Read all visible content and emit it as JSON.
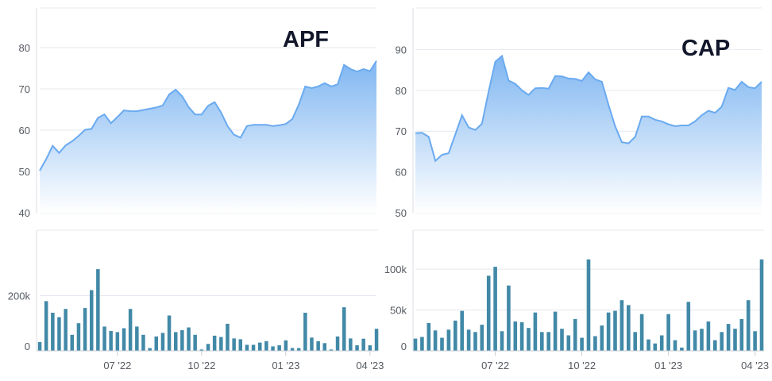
{
  "chart_data": [
    {
      "type": "area",
      "title": "APF",
      "xlabel": "",
      "ylabel": "",
      "x_ticks": [
        "07 '22",
        "10 '22",
        "01 '23",
        "04 '23"
      ],
      "ylim": [
        40,
        90
      ],
      "yticks": [
        40,
        50,
        60,
        70,
        80
      ],
      "grid": true,
      "colors": {
        "line": "#6aaaf0",
        "fill_top": "#7fb6f1",
        "fill_bottom": "#ffffff"
      },
      "values": [
        50.2,
        53.0,
        56.2,
        54.5,
        56.3,
        57.3,
        58.6,
        60.1,
        60.3,
        63.0,
        63.8,
        61.7,
        63.2,
        64.8,
        64.6,
        64.6,
        64.9,
        65.2,
        65.5,
        66.0,
        68.7,
        69.8,
        68.2,
        65.6,
        63.8,
        63.8,
        65.9,
        66.8,
        64.3,
        61.0,
        58.9,
        58.2,
        61.0,
        61.3,
        61.3,
        61.3,
        61.0,
        61.2,
        61.5,
        62.7,
        66.2,
        70.6,
        70.2,
        70.6,
        71.4,
        70.6,
        71.1,
        75.8,
        74.8,
        74.2,
        74.8,
        74.3,
        76.8
      ]
    },
    {
      "type": "bar",
      "title": "",
      "xlabel": "",
      "ylabel": "",
      "x_ticks": [
        "07 '22",
        "10 '22",
        "01 '23",
        "04 '23"
      ],
      "ylim": [
        0,
        420000
      ],
      "yticks": [
        {
          "value": 0,
          "label": "0"
        },
        {
          "value": 200000,
          "label": "200k"
        }
      ],
      "grid": true,
      "colors": {
        "bar": "#4189a7"
      },
      "values": [
        32000,
        180000,
        138000,
        122000,
        152000,
        58000,
        100000,
        155000,
        220000,
        296000,
        88000,
        72000,
        68000,
        82000,
        152000,
        88000,
        58000,
        10000,
        52000,
        65000,
        128000,
        68000,
        75000,
        85000,
        58000,
        5000,
        25000,
        55000,
        50000,
        98000,
        45000,
        42000,
        22000,
        22000,
        30000,
        35000,
        16000,
        20000,
        38000,
        10000,
        10000,
        138000,
        48000,
        35000,
        28000,
        5000,
        52000,
        158000,
        45000,
        20000,
        44000,
        20000,
        80000
      ]
    },
    {
      "type": "area",
      "title": "CAP",
      "xlabel": "",
      "ylabel": "",
      "x_ticks": [
        "07 '22",
        "10 '22",
        "01 '23",
        "04 '23"
      ],
      "ylim": [
        50,
        100
      ],
      "yticks": [
        50,
        60,
        70,
        80,
        90
      ],
      "grid": true,
      "colors": {
        "line": "#6aaaf0",
        "fill_top": "#7fb6f1",
        "fill_bottom": "#ffffff"
      },
      "values": [
        69.5,
        69.6,
        68.6,
        62.7,
        64.2,
        64.6,
        69.2,
        73.9,
        70.9,
        70.3,
        71.8,
        79.7,
        87.0,
        88.4,
        82.4,
        81.6,
        80.0,
        78.9,
        80.5,
        80.6,
        80.4,
        83.5,
        83.4,
        82.9,
        82.8,
        82.3,
        84.4,
        82.7,
        82.1,
        76.4,
        71.2,
        67.3,
        67.0,
        68.6,
        73.6,
        73.6,
        72.8,
        72.4,
        71.7,
        71.2,
        71.4,
        71.4,
        72.4,
        73.9,
        75.0,
        74.5,
        76.0,
        80.6,
        80.1,
        82.1,
        80.8,
        80.5,
        82.1
      ]
    },
    {
      "type": "bar",
      "title": "",
      "xlabel": "",
      "ylabel": "",
      "x_ticks": [
        "07 '22",
        "10 '22",
        "01 '23",
        "04 '23"
      ],
      "ylim": [
        0,
        140000
      ],
      "yticks": [
        {
          "value": 0,
          "label": "0"
        },
        {
          "value": 50000,
          "label": "50k"
        },
        {
          "value": 100000,
          "label": "100k"
        }
      ],
      "grid": true,
      "colors": {
        "bar": "#4189a7"
      },
      "values": [
        15000,
        17000,
        34000,
        25000,
        16000,
        26000,
        37000,
        49000,
        26000,
        23000,
        32000,
        92000,
        103000,
        24000,
        80000,
        36000,
        35000,
        28000,
        47000,
        23000,
        23000,
        48000,
        27000,
        19000,
        39000,
        16000,
        112000,
        18000,
        31000,
        47000,
        49000,
        62000,
        56000,
        23000,
        45000,
        14000,
        9000,
        19000,
        45000,
        13000,
        4000,
        60000,
        25000,
        27000,
        36000,
        13000,
        23000,
        33000,
        27000,
        39000,
        62000,
        24000,
        112000
      ]
    }
  ]
}
